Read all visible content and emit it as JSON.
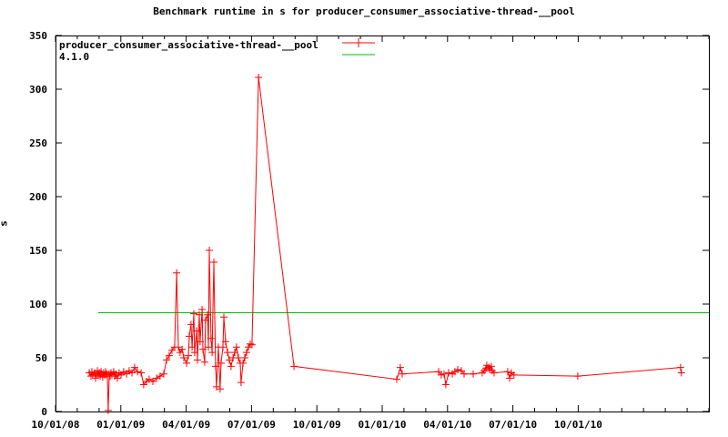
{
  "chart_data": {
    "type": "line",
    "title": "Benchmark runtime in s for producer_consumer_associative-thread-__pool",
    "ylabel": "s",
    "ylim": [
      0,
      350
    ],
    "yticks": [
      0,
      50,
      100,
      150,
      200,
      250,
      300,
      350
    ],
    "x_axis": {
      "range_months": [
        0,
        30
      ],
      "minor_tick_every_months": 1,
      "major_tick_every_months": 3,
      "tick_labels": [
        {
          "month": 0,
          "label": "10/01/08"
        },
        {
          "month": 3,
          "label": "01/01/09"
        },
        {
          "month": 6,
          "label": "04/01/09"
        },
        {
          "month": 9,
          "label": "07/01/09"
        },
        {
          "month": 12,
          "label": "10/01/09"
        },
        {
          "month": 15,
          "label": "01/01/10"
        },
        {
          "month": 18,
          "label": "04/01/10"
        },
        {
          "month": 21,
          "label": "07/01/10"
        },
        {
          "month": 24,
          "label": "10/01/10"
        }
      ]
    },
    "grid": false,
    "legend_position": "top-left-inside",
    "series": [
      {
        "name": "producer_consumer_associative-thread-__pool",
        "style": "line-with-plus-markers",
        "color": "#ff0000",
        "points_month_value": [
          [
            1.55,
            36
          ],
          [
            1.63,
            33
          ],
          [
            1.67,
            37
          ],
          [
            1.71,
            34
          ],
          [
            1.8,
            36
          ],
          [
            1.84,
            31
          ],
          [
            1.88,
            35
          ],
          [
            1.92,
            38
          ],
          [
            1.96,
            34
          ],
          [
            2.01,
            36
          ],
          [
            2.05,
            33
          ],
          [
            2.09,
            37
          ],
          [
            2.13,
            35
          ],
          [
            2.17,
            32
          ],
          [
            2.21,
            36
          ],
          [
            2.26,
            34
          ],
          [
            2.3,
            37
          ],
          [
            2.34,
            35
          ],
          [
            2.38,
            33
          ],
          [
            2.42,
            1
          ],
          [
            2.47,
            35
          ],
          [
            2.51,
            33
          ],
          [
            2.55,
            36
          ],
          [
            2.59,
            34
          ],
          [
            2.67,
            37
          ],
          [
            2.72,
            33
          ],
          [
            2.76,
            35
          ],
          [
            2.84,
            31
          ],
          [
            2.92,
            36
          ],
          [
            3.01,
            34
          ],
          [
            3.13,
            37
          ],
          [
            3.26,
            35
          ],
          [
            3.38,
            38
          ],
          [
            3.51,
            36
          ],
          [
            3.63,
            41
          ],
          [
            3.76,
            37
          ],
          [
            3.93,
            36
          ],
          [
            4.05,
            25
          ],
          [
            4.18,
            28
          ],
          [
            4.3,
            30
          ],
          [
            4.47,
            28
          ],
          [
            4.64,
            31
          ],
          [
            4.8,
            33
          ],
          [
            4.97,
            35
          ],
          [
            5.1,
            48
          ],
          [
            5.22,
            52
          ],
          [
            5.35,
            57
          ],
          [
            5.47,
            60
          ],
          [
            5.56,
            129
          ],
          [
            5.64,
            60
          ],
          [
            5.72,
            55
          ],
          [
            5.81,
            58
          ],
          [
            5.89,
            50
          ],
          [
            6.02,
            45
          ],
          [
            6.1,
            52
          ],
          [
            6.14,
            70
          ],
          [
            6.22,
            81
          ],
          [
            6.27,
            60
          ],
          [
            6.35,
            91
          ],
          [
            6.39,
            55
          ],
          [
            6.48,
            75
          ],
          [
            6.52,
            48
          ],
          [
            6.6,
            90
          ],
          [
            6.64,
            65
          ],
          [
            6.73,
            95
          ],
          [
            6.77,
            58
          ],
          [
            6.85,
            46
          ],
          [
            6.89,
            85
          ],
          [
            6.98,
            90
          ],
          [
            7.02,
            60
          ],
          [
            7.06,
            150
          ],
          [
            7.14,
            68
          ],
          [
            7.19,
            55
          ],
          [
            7.27,
            139
          ],
          [
            7.35,
            42
          ],
          [
            7.39,
            23
          ],
          [
            7.48,
            60
          ],
          [
            7.56,
            21
          ],
          [
            7.6,
            45
          ],
          [
            7.69,
            60
          ],
          [
            7.73,
            88
          ],
          [
            7.81,
            65
          ],
          [
            7.9,
            55
          ],
          [
            7.98,
            48
          ],
          [
            8.06,
            42
          ],
          [
            8.15,
            50
          ],
          [
            8.23,
            55
          ],
          [
            8.31,
            60
          ],
          [
            8.4,
            50
          ],
          [
            8.48,
            45
          ],
          [
            8.52,
            27
          ],
          [
            8.61,
            45
          ],
          [
            8.69,
            50
          ],
          [
            8.77,
            55
          ],
          [
            8.86,
            60
          ],
          [
            8.94,
            63
          ],
          [
            9.02,
            62
          ],
          [
            9.32,
            311
          ],
          [
            10.95,
            42
          ],
          [
            15.67,
            30
          ],
          [
            15.83,
            41
          ],
          [
            15.92,
            35
          ],
          [
            17.59,
            37
          ],
          [
            17.71,
            34
          ],
          [
            17.84,
            35
          ],
          [
            17.92,
            25
          ],
          [
            18.05,
            36
          ],
          [
            18.22,
            35
          ],
          [
            18.34,
            37
          ],
          [
            18.47,
            39
          ],
          [
            18.63,
            38
          ],
          [
            18.76,
            35
          ],
          [
            19.18,
            35
          ],
          [
            19.59,
            36
          ],
          [
            19.68,
            38
          ],
          [
            19.76,
            40
          ],
          [
            19.8,
            43
          ],
          [
            19.89,
            41
          ],
          [
            19.93,
            39
          ],
          [
            20.01,
            42
          ],
          [
            20.05,
            38
          ],
          [
            20.14,
            36
          ],
          [
            20.76,
            37
          ],
          [
            20.85,
            31
          ],
          [
            20.93,
            36
          ],
          [
            21.05,
            34
          ],
          [
            23.98,
            33
          ],
          [
            28.7,
            41
          ],
          [
            28.74,
            36
          ]
        ]
      },
      {
        "name": "4.1.0",
        "style": "horizontal-line",
        "color": "#00c000",
        "value": 92,
        "start_month": 1.96,
        "end_month": 30
      }
    ]
  },
  "colors": {
    "background": "#ffffff",
    "foreground": "#000000",
    "series_red": "#ff0000",
    "series_green": "#00c000"
  }
}
